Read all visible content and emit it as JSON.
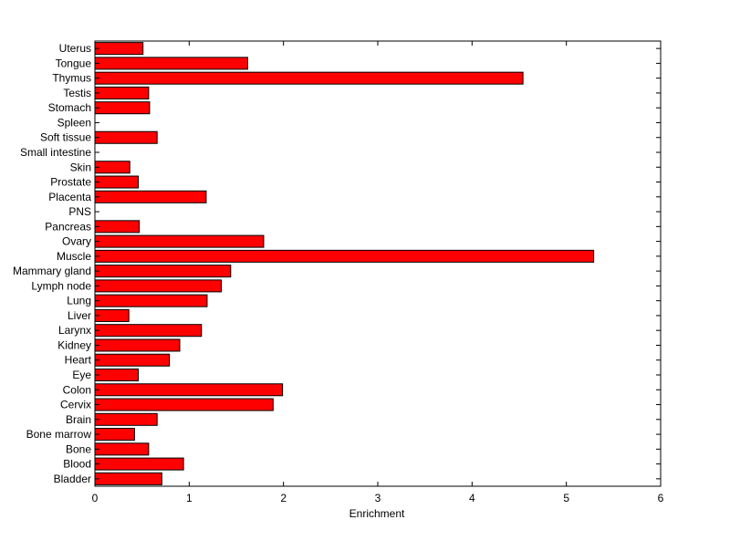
{
  "chart_data": {
    "type": "bar",
    "orientation": "horizontal",
    "title": "",
    "xlabel": "Enrichment",
    "ylabel": "",
    "xlim": [
      0,
      6
    ],
    "xticks": [
      0,
      1,
      2,
      3,
      4,
      5,
      6
    ],
    "grid": false,
    "legend": "none",
    "bar_color": "#ff0000",
    "bar_edge_color": "#000000",
    "categories": [
      "Bladder",
      "Blood",
      "Bone",
      "Bone marrow",
      "Brain",
      "Cervix",
      "Colon",
      "Eye",
      "Heart",
      "Kidney",
      "Larynx",
      "Liver",
      "Lung",
      "Lymph node",
      "Mammary gland",
      "Muscle",
      "Ovary",
      "Pancreas",
      "PNS",
      "Placenta",
      "Prostate",
      "Skin",
      "Small intestine",
      "Soft tissue",
      "Spleen",
      "Stomach",
      "Testis",
      "Thymus",
      "Tongue",
      "Uterus"
    ],
    "values": [
      0.71,
      0.94,
      0.57,
      0.42,
      0.66,
      1.89,
      1.99,
      0.46,
      0.79,
      0.9,
      1.13,
      0.36,
      1.19,
      1.34,
      1.44,
      5.29,
      1.79,
      0.47,
      0,
      1.18,
      0.46,
      0.37,
      0,
      0.66,
      0,
      0.58,
      0.57,
      4.54,
      1.62,
      0.51
    ]
  }
}
